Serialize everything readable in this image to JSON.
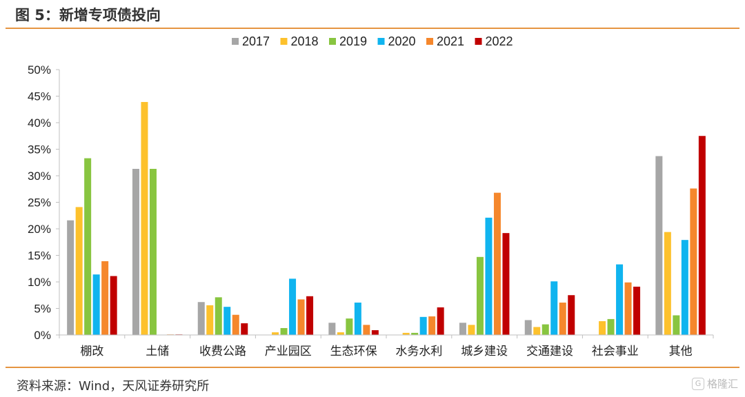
{
  "header": {
    "title": "图 5：新增专项债投向"
  },
  "footer": {
    "source": "资料来源：Wind，天风证券研究所",
    "watermark_icon": "hexagon-logo-icon",
    "watermark": "格隆汇"
  },
  "chart_data": {
    "type": "bar",
    "title": "",
    "xlabel": "",
    "ylabel": "",
    "ylim": [
      0,
      50
    ],
    "y_unit": "%",
    "y_ticks": [
      0,
      5,
      10,
      15,
      20,
      25,
      30,
      35,
      40,
      45,
      50
    ],
    "grid": false,
    "legend_position": "top-center",
    "categories": [
      "棚改",
      "土储",
      "收费公路",
      "产业园区",
      "生态环保",
      "水务水利",
      "城乡建设",
      "交通建设",
      "社会事业",
      "其他"
    ],
    "series": [
      {
        "name": "2017",
        "color": "#a6a6a6",
        "values": [
          21.6,
          31.3,
          6.2,
          0,
          2.3,
          0,
          2.3,
          2.8,
          0,
          33.7
        ]
      },
      {
        "name": "2018",
        "color": "#fdc12c",
        "values": [
          24.1,
          43.9,
          5.6,
          0.5,
          0.5,
          0.4,
          1.9,
          1.5,
          2.6,
          19.4
        ]
      },
      {
        "name": "2019",
        "color": "#88c540",
        "values": [
          33.3,
          31.3,
          7.1,
          1.3,
          3.1,
          0.4,
          14.7,
          2.0,
          3.0,
          3.7
        ]
      },
      {
        "name": "2020",
        "color": "#10b4ef",
        "values": [
          11.4,
          0,
          5.3,
          10.6,
          6.1,
          3.4,
          22.1,
          10.1,
          13.3,
          17.9
        ]
      },
      {
        "name": "2021",
        "color": "#f5872c",
        "values": [
          13.9,
          0.1,
          3.8,
          6.7,
          1.9,
          3.5,
          26.8,
          6.1,
          9.9,
          27.6
        ]
      },
      {
        "name": "2022",
        "color": "#c00000",
        "values": [
          11.1,
          0.1,
          2.2,
          7.3,
          0.9,
          5.2,
          19.2,
          7.5,
          9.1,
          37.5
        ]
      }
    ]
  }
}
